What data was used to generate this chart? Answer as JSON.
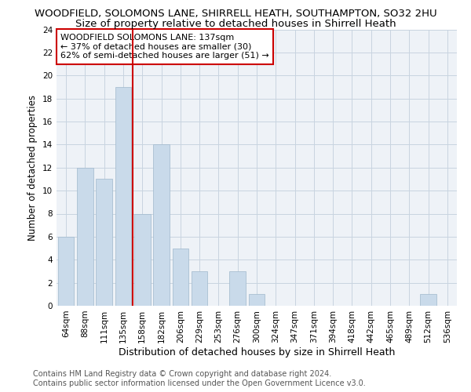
{
  "title": "WOODFIELD, SOLOMONS LANE, SHIRRELL HEATH, SOUTHAMPTON, SO32 2HU",
  "subtitle": "Size of property relative to detached houses in Shirrell Heath",
  "xlabel": "Distribution of detached houses by size in Shirrell Heath",
  "ylabel": "Number of detached properties",
  "categories": [
    "64sqm",
    "88sqm",
    "111sqm",
    "135sqm",
    "158sqm",
    "182sqm",
    "206sqm",
    "229sqm",
    "253sqm",
    "276sqm",
    "300sqm",
    "324sqm",
    "347sqm",
    "371sqm",
    "394sqm",
    "418sqm",
    "442sqm",
    "465sqm",
    "489sqm",
    "512sqm",
    "536sqm"
  ],
  "values": [
    6,
    12,
    11,
    19,
    8,
    14,
    5,
    3,
    0,
    3,
    1,
    0,
    0,
    0,
    0,
    0,
    0,
    0,
    0,
    1,
    0
  ],
  "bar_color": "#c9daea",
  "bar_edge_color": "#a0b8cc",
  "grid_color": "#c8d4e0",
  "annotation_box_text": "WOODFIELD SOLOMONS LANE: 137sqm\n← 37% of detached houses are smaller (30)\n62% of semi-detached houses are larger (51) →",
  "annotation_box_color": "#ffffff",
  "annotation_box_edge_color": "#cc0000",
  "red_line_color": "#cc0000",
  "ylim": [
    0,
    24
  ],
  "yticks": [
    0,
    2,
    4,
    6,
    8,
    10,
    12,
    14,
    16,
    18,
    20,
    22,
    24
  ],
  "background_color": "#eef2f7",
  "footer_text": "Contains HM Land Registry data © Crown copyright and database right 2024.\nContains public sector information licensed under the Open Government Licence v3.0.",
  "title_fontsize": 9.5,
  "subtitle_fontsize": 9.5,
  "xlabel_fontsize": 9,
  "ylabel_fontsize": 8.5,
  "tick_fontsize": 7.5,
  "annotation_fontsize": 8,
  "footer_fontsize": 7
}
